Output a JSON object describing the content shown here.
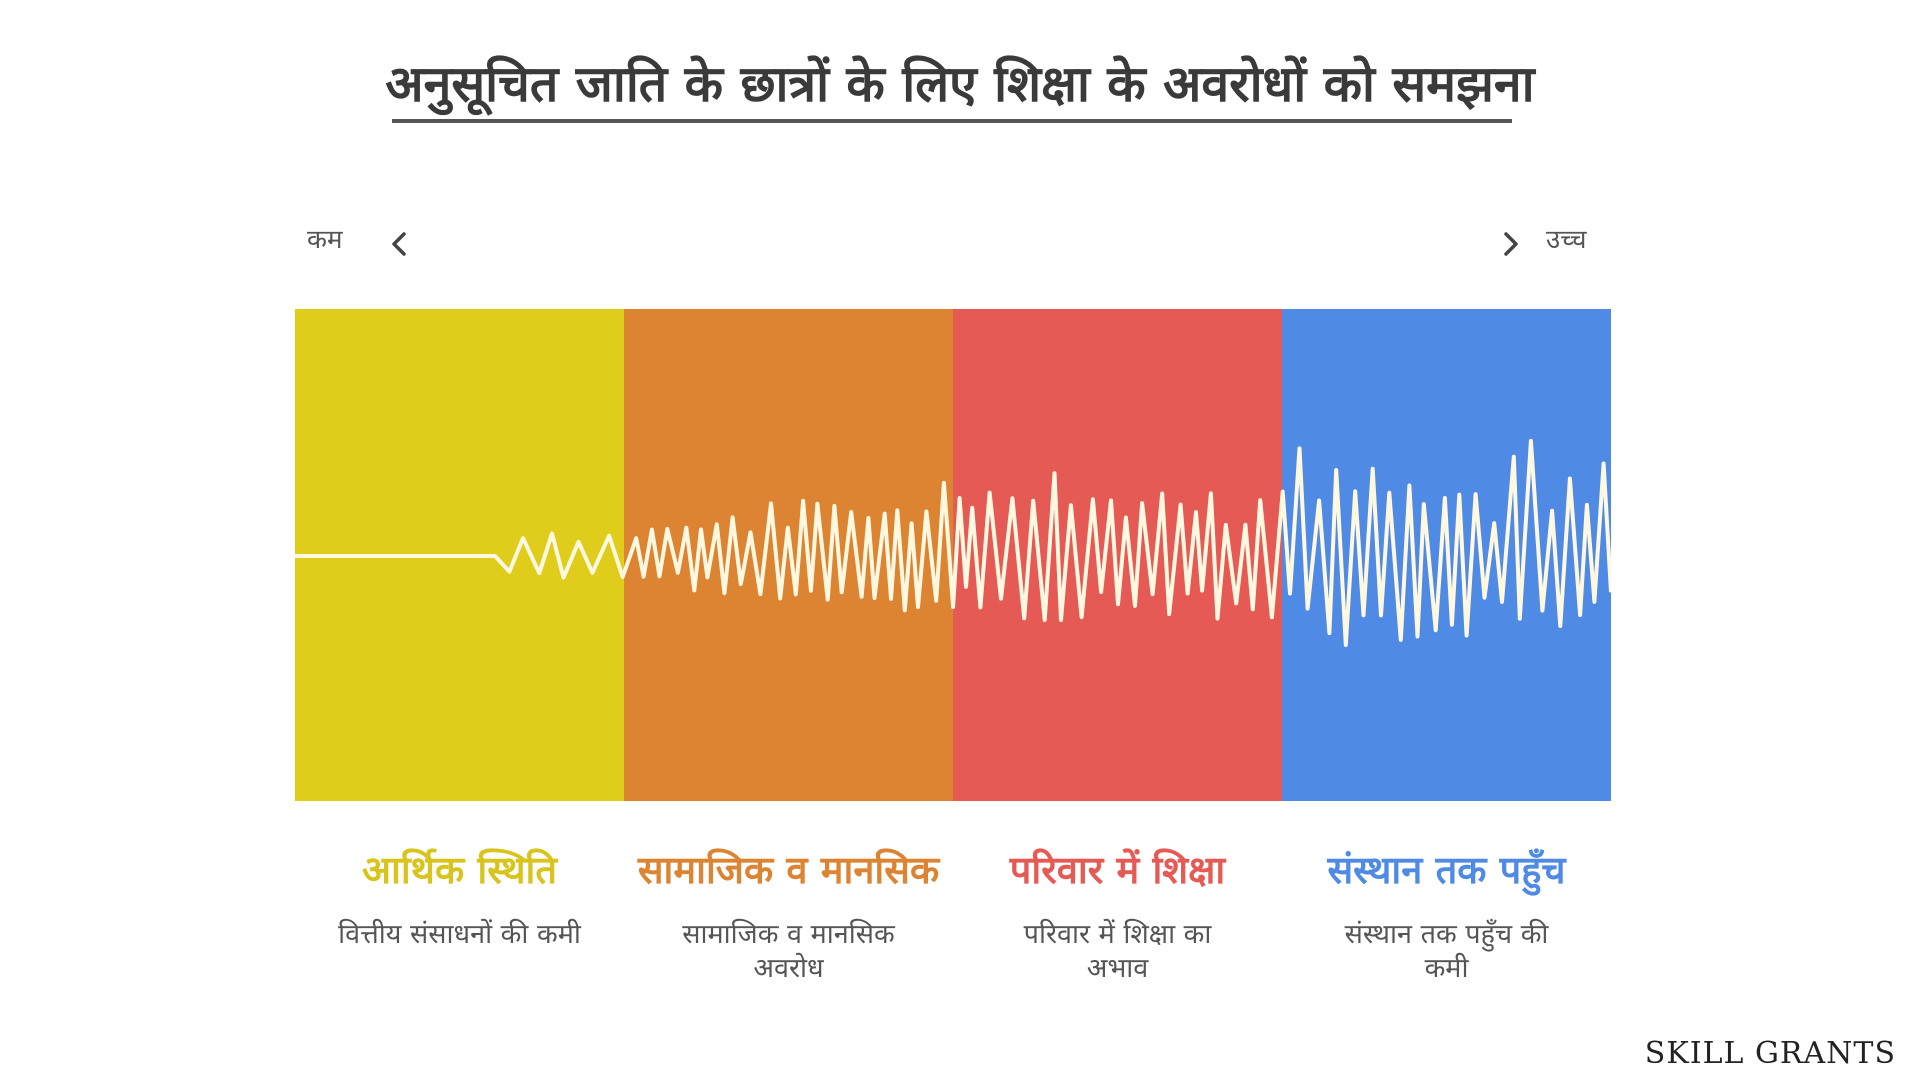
{
  "title": "अनुसूचित जाति के छात्रों के लिए शिक्षा के अवरोधों को समझना",
  "scale": {
    "low_label": "कम",
    "high_label": "उच्च",
    "left_icon": "chevron-left-icon",
    "right_icon": "chevron-right-icon"
  },
  "categories": [
    {
      "title": "आर्थिक स्थिति",
      "description": "वित्तीय संसाधनों की कमी",
      "color": "#E0CC1A",
      "title_color": "#D8C41C"
    },
    {
      "title": "सामाजिक व मानसिक",
      "description": "सामाजिक व मानसिक अवरोध",
      "color": "#DD8432",
      "title_color": "#DD8432"
    },
    {
      "title": "परिवार में शिक्षा",
      "description": "परिवार में शिक्षा का अभाव",
      "color": "#E55A55",
      "title_color": "#E55A55"
    },
    {
      "title": "संस्थान तक पहुँच",
      "description": "संस्थान तक पहुँच की कमी",
      "color": "#4F8AE5",
      "title_color": "#4F8AE5"
    }
  ],
  "wave": {
    "color": "#FFF8E1"
  },
  "brand": "SKILL GRANTS"
}
